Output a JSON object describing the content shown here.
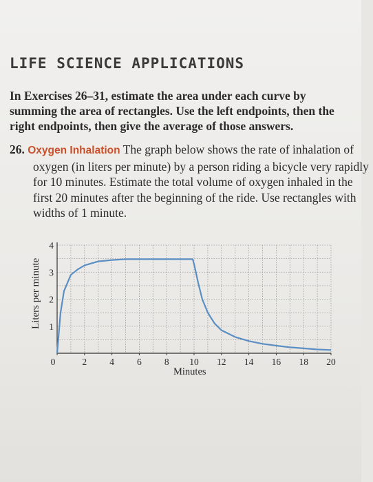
{
  "section_title": "LIFE SCIENCE APPLICATIONS",
  "instructions": "In Exercises 26–31, estimate the area under each curve by summing the area of rectangles. Use the left endpoints, then the right endpoints, then give the average of those answers.",
  "exercise": {
    "number": "26.",
    "heading": "Oxygen Inhalation",
    "text": "The graph below shows the rate of inhalation of oxygen (in liters per minute) by a person riding a bicycle very rapidly for 10 minutes. Estimate the total volume of oxygen inhaled in the first 20 minutes after the beginning of the ride. Use rectangles with widths of 1 minute."
  },
  "chart_data": {
    "type": "line",
    "xlabel": "Minutes",
    "ylabel": "Liters per minute",
    "xlim": [
      0,
      20
    ],
    "ylim": [
      0,
      4
    ],
    "x_ticks": [
      "0",
      "2",
      "4",
      "6",
      "8",
      "10",
      "12",
      "14",
      "16",
      "18",
      "20"
    ],
    "y_ticks": [
      "1",
      "2",
      "3",
      "4"
    ],
    "grid": true,
    "line_color": "#5b8fc4",
    "series": [
      {
        "x": [
          0,
          0.25,
          0.5,
          1,
          1.5,
          2,
          3,
          4,
          5,
          6,
          7,
          8,
          9,
          9.9,
          10,
          10.3,
          10.6,
          11,
          11.5,
          12,
          13,
          14,
          15,
          16,
          17,
          18,
          19,
          20
        ],
        "y": [
          0,
          1.5,
          2.3,
          2.9,
          3.1,
          3.25,
          3.4,
          3.45,
          3.48,
          3.48,
          3.48,
          3.48,
          3.48,
          3.48,
          3.3,
          2.6,
          2.0,
          1.5,
          1.1,
          0.85,
          0.6,
          0.45,
          0.35,
          0.28,
          0.22,
          0.18,
          0.14,
          0.12
        ]
      }
    ]
  }
}
